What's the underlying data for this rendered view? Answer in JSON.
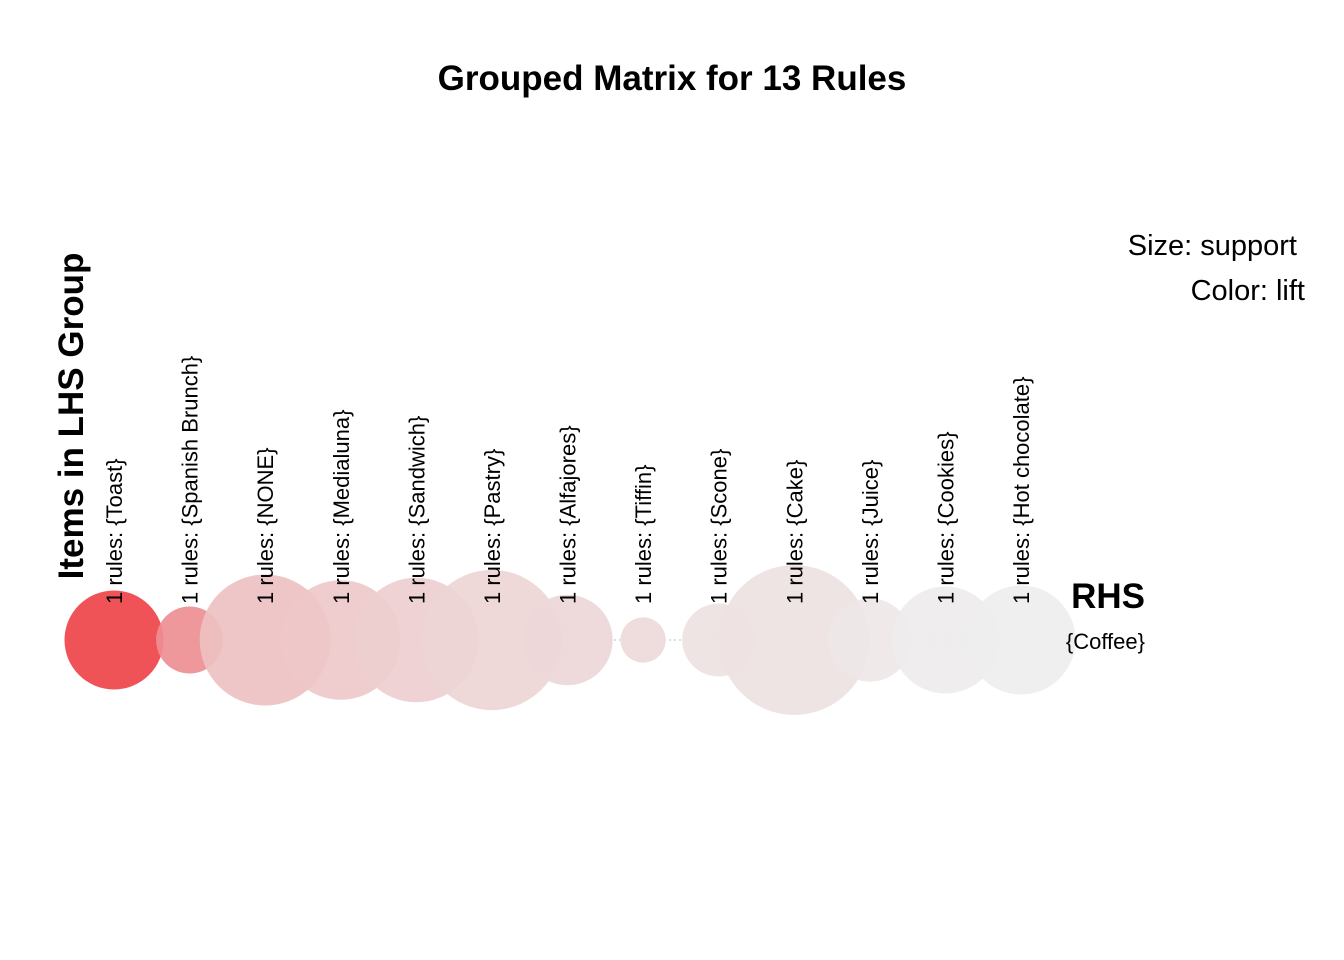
{
  "chart_data": {
    "type": "grouped-matrix",
    "title": "Grouped Matrix for 13 Rules",
    "ylabel": "Items in LHS Group",
    "rhs_title": "RHS",
    "rhs_items": [
      "{Coffee}"
    ],
    "legend": {
      "size": "Size: support",
      "color": "Color: lift",
      "position": "top-right"
    },
    "lhs_groups": [
      {
        "label": "1 rules: {Toast}",
        "support": 0.024,
        "lift": 1.47
      },
      {
        "label": "1 rules: {Spanish Brunch}",
        "support": 0.011,
        "lift": 1.33
      },
      {
        "label": "1 rules: {NONE}",
        "support": 0.042,
        "lift": 1.21
      },
      {
        "label": "1 rules: {Medialuna}",
        "support": 0.035,
        "lift": 1.19
      },
      {
        "label": "1 rules: {Sandwich}",
        "support": 0.038,
        "lift": 1.17
      },
      {
        "label": "1 rules: {Pastry}",
        "support": 0.048,
        "lift": 1.15
      },
      {
        "label": "1 rules: {Alfajores}",
        "support": 0.02,
        "lift": 1.14
      },
      {
        "label": "1 rules: {Tiffin}",
        "support": 0.005,
        "lift": 1.13
      },
      {
        "label": "1 rules: {Scone}",
        "support": 0.013,
        "lift": 1.1
      },
      {
        "label": "1 rules: {Cake}",
        "support": 0.055,
        "lift": 1.1
      },
      {
        "label": "1 rules: {Juice}",
        "support": 0.017,
        "lift": 1.07
      },
      {
        "label": "1 rules: {Cookies}",
        "support": 0.028,
        "lift": 1.05
      },
      {
        "label": "1 rules: {Hot chocolate}",
        "support": 0.029,
        "lift": 1.01
      }
    ]
  }
}
